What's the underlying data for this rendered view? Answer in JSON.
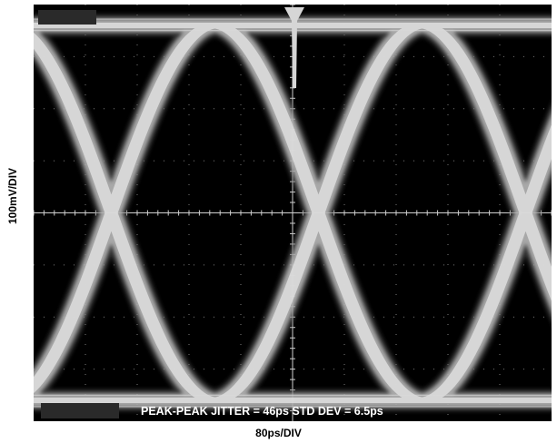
{
  "chart_data": {
    "type": "line",
    "title": "",
    "xlabel": "80ps/DIV",
    "ylabel": "100mV/DIV",
    "annotation": "PEAK-PEAK JITTER = 46ps STD DEV = 6.5ps",
    "grid": true,
    "x_divisions": 10,
    "y_divisions": 8,
    "x_scale": "80ps/DIV",
    "y_scale": "100mV/DIV",
    "crossing_points_div": [
      1.5,
      5.5,
      9.5
    ],
    "high_level_div": 3.6,
    "low_level_div": -3.6,
    "unit_interval_div": 4,
    "background_color": "#000000",
    "trace_color": "#bdbdbd",
    "grid_color": "#7a7a7a"
  }
}
